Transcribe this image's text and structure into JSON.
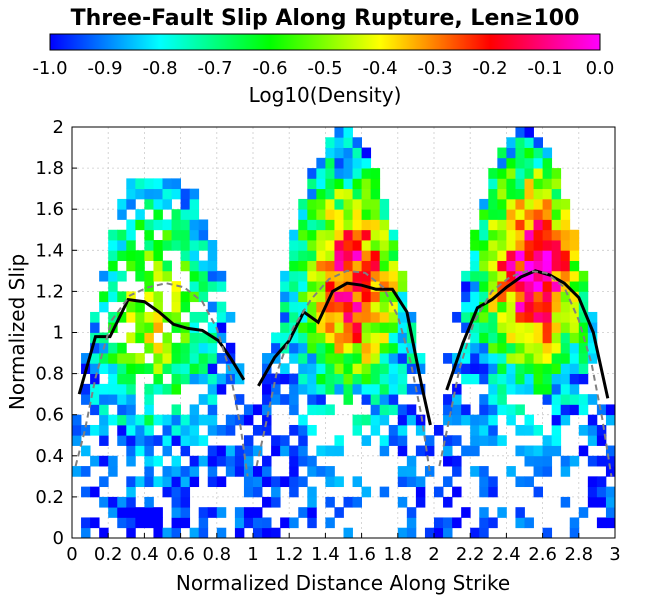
{
  "chart_data": {
    "type": "heatmap",
    "title": "Three-Fault Slip Along Rupture, Len≥100",
    "xlabel": "Normalized Distance Along Strike",
    "ylabel": "Normalized Slip",
    "colorbar_label": "Log10(Density)",
    "xlim": [
      0,
      3
    ],
    "ylim": [
      0,
      2
    ],
    "clim": [
      -1.0,
      0.0
    ],
    "colormap": "blue-cyan-green-yellow-red-magenta",
    "colormap_stops": [
      "#0000ff",
      "#00ffff",
      "#00ff00",
      "#ffff00",
      "#ff0000",
      "#ff00ff"
    ],
    "x_ticks": [
      "0",
      "0.2",
      "0.4",
      "0.6",
      "0.8",
      "1",
      "1.2",
      "1.4",
      "1.6",
      "1.8",
      "2",
      "2.2",
      "2.4",
      "2.6",
      "2.8",
      "3"
    ],
    "y_ticks": [
      "0",
      "0.2",
      "0.4",
      "0.6",
      "0.8",
      "1",
      "1.2",
      "1.4",
      "1.6",
      "1.8",
      "2"
    ],
    "cbar_ticks": [
      "-1.0",
      "-0.9",
      "-0.8",
      "-0.7",
      "-0.6",
      "-0.5",
      "-0.4",
      "-0.3",
      "-0.2",
      "-0.1",
      "0.0"
    ],
    "grid": true,
    "series": [
      {
        "style": "solid-black",
        "segments": [
          [
            [
              0.04,
              0.7
            ],
            [
              0.13,
              0.98
            ],
            [
              0.21,
              0.98
            ],
            [
              0.31,
              1.16
            ],
            [
              0.4,
              1.15
            ],
            [
              0.48,
              1.1
            ],
            [
              0.56,
              1.04
            ],
            [
              0.64,
              1.02
            ],
            [
              0.72,
              1.01
            ],
            [
              0.81,
              0.96
            ],
            [
              0.88,
              0.87
            ],
            [
              0.95,
              0.77
            ]
          ],
          [
            [
              1.03,
              0.74
            ],
            [
              1.12,
              0.88
            ],
            [
              1.2,
              0.96
            ],
            [
              1.28,
              1.1
            ],
            [
              1.36,
              1.05
            ],
            [
              1.44,
              1.2
            ],
            [
              1.52,
              1.24
            ],
            [
              1.6,
              1.23
            ],
            [
              1.68,
              1.21
            ],
            [
              1.77,
              1.21
            ],
            [
              1.85,
              1.1
            ],
            [
              1.93,
              0.75
            ],
            [
              1.98,
              0.55
            ]
          ],
          [
            [
              2.07,
              0.72
            ],
            [
              2.16,
              0.95
            ],
            [
              2.24,
              1.12
            ],
            [
              2.32,
              1.16
            ],
            [
              2.4,
              1.22
            ],
            [
              2.48,
              1.27
            ],
            [
              2.56,
              1.3
            ],
            [
              2.64,
              1.28
            ],
            [
              2.72,
              1.24
            ],
            [
              2.8,
              1.17
            ],
            [
              2.88,
              1.0
            ],
            [
              2.96,
              0.68
            ]
          ]
        ]
      },
      {
        "style": "dashed-gray",
        "segments": [
          [
            [
              0.02,
              0.35
            ],
            [
              0.07,
              0.52
            ],
            [
              0.13,
              0.78
            ],
            [
              0.22,
              1.06
            ],
            [
              0.32,
              1.18
            ],
            [
              0.42,
              1.22
            ],
            [
              0.52,
              1.24
            ],
            [
              0.62,
              1.22
            ],
            [
              0.72,
              1.15
            ],
            [
              0.8,
              1.02
            ],
            [
              0.87,
              0.82
            ],
            [
              0.93,
              0.55
            ],
            [
              0.97,
              0.3
            ]
          ],
          [
            [
              1.02,
              0.35
            ],
            [
              1.07,
              0.55
            ],
            [
              1.13,
              0.8
            ],
            [
              1.22,
              1.02
            ],
            [
              1.32,
              1.16
            ],
            [
              1.42,
              1.26
            ],
            [
              1.52,
              1.3
            ],
            [
              1.62,
              1.29
            ],
            [
              1.72,
              1.22
            ],
            [
              1.8,
              1.08
            ],
            [
              1.87,
              0.86
            ],
            [
              1.93,
              0.6
            ],
            [
              1.98,
              0.3
            ]
          ],
          [
            [
              2.03,
              0.35
            ],
            [
              2.08,
              0.56
            ],
            [
              2.14,
              0.82
            ],
            [
              2.22,
              1.05
            ],
            [
              2.32,
              1.2
            ],
            [
              2.42,
              1.27
            ],
            [
              2.52,
              1.3
            ],
            [
              2.62,
              1.29
            ],
            [
              2.72,
              1.22
            ],
            [
              2.8,
              1.06
            ],
            [
              2.87,
              0.85
            ],
            [
              2.93,
              0.58
            ],
            [
              2.98,
              0.3
            ]
          ]
        ]
      }
    ],
    "density_lobes": [
      {
        "x_start": 0.0,
        "x_end": 1.0,
        "peak_x": 0.45,
        "peak_y": 1.1,
        "peak_level": -0.45,
        "slip_range": [
          0.0,
          1.75
        ]
      },
      {
        "x_start": 1.0,
        "x_end": 2.0,
        "peak_x": 1.55,
        "peak_y": 1.25,
        "peak_level": -0.15,
        "slip_range": [
          0.0,
          2.0
        ]
      },
      {
        "x_start": 2.0,
        "x_end": 3.0,
        "peak_x": 2.55,
        "peak_y": 1.3,
        "peak_level": -0.05,
        "slip_range": [
          0.0,
          2.0
        ]
      }
    ]
  }
}
